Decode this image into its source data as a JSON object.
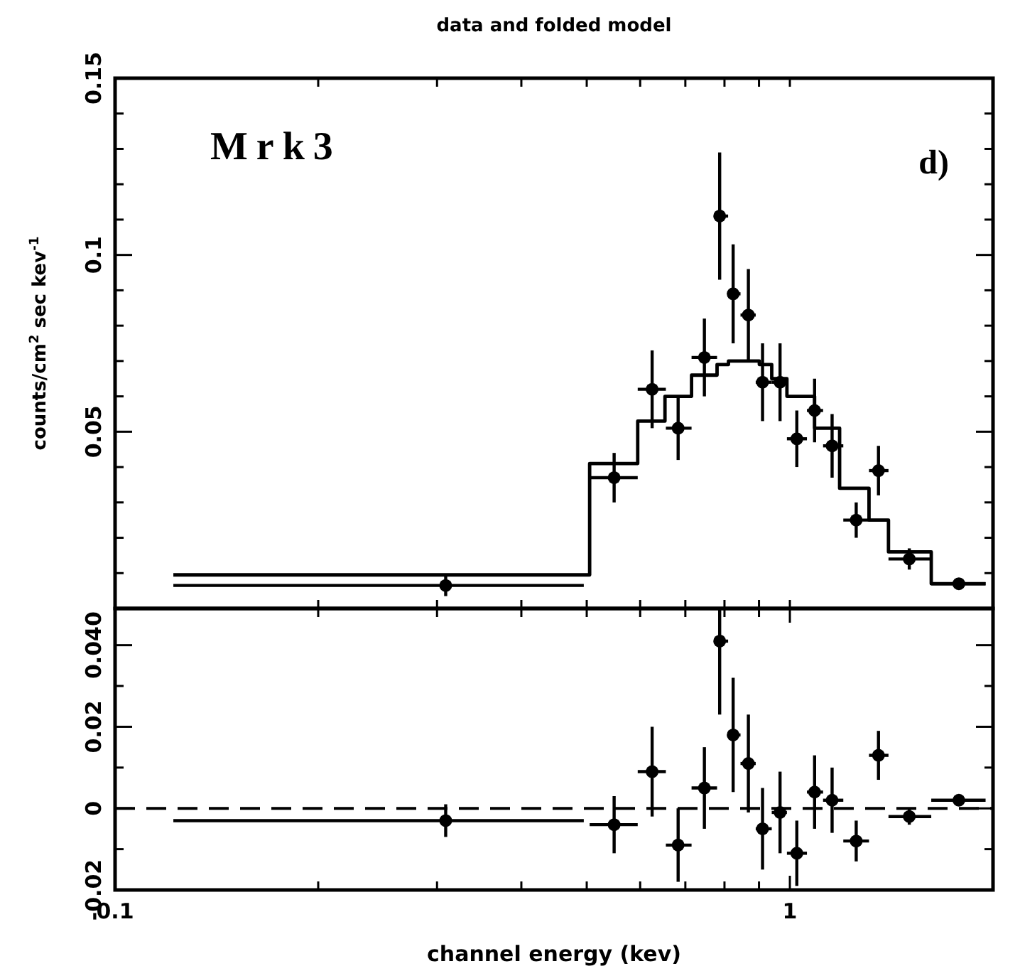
{
  "chart_data": [
    {
      "type": "scatter",
      "title": "data and folded model",
      "ylabel": "counts/cm$^{2}$ sec kev$^{-1}$",
      "annotations": [
        "Mrk3",
        "d)"
      ],
      "tick_labels": "y",
      "log": "x",
      "xlim": [
        0.1,
        2
      ],
      "xticks": [
        {
          "value": 0.2,
          "label": null
        },
        {
          "value": 0.3,
          "label": null
        },
        {
          "value": 0.4,
          "label": null
        },
        {
          "value": 0.5,
          "label": null
        },
        {
          "value": 0.6,
          "label": null
        },
        {
          "value": 0.7,
          "label": null
        },
        {
          "value": 0.8,
          "label": null
        },
        {
          "value": 0.9,
          "label": null
        },
        {
          "value": 1,
          "label": null
        }
      ],
      "ylim": [
        0,
        0.15
      ],
      "yticks": [
        {
          "value": 0.01,
          "label": null
        },
        {
          "value": 0.02,
          "label": null
        },
        {
          "value": 0.03,
          "label": null
        },
        {
          "value": 0.04,
          "label": null
        },
        0.05,
        {
          "value": 0.06,
          "label": null
        },
        {
          "value": 0.07,
          "label": null
        },
        {
          "value": 0.08,
          "label": null
        },
        {
          "value": 0.09,
          "label": null
        },
        0.1,
        {
          "value": 0.11,
          "label": null
        },
        {
          "value": 0.12,
          "label": null
        },
        {
          "value": 0.13,
          "label": null
        },
        {
          "value": 0.14,
          "label": null
        },
        0.15
      ],
      "series": [
        {
          "marker": "circle",
          "color": "#000000",
          "x": [
            0.309,
            0.549,
            0.625,
            0.683,
            0.747,
            0.787,
            0.824,
            0.868,
            0.911,
            0.967,
            1.024,
            1.088,
            1.155,
            1.254,
            1.353,
            1.503,
            1.78
          ],
          "values": [
            0.0065,
            0.037,
            0.062,
            0.051,
            0.071,
            0.111,
            0.089,
            0.083,
            0.064,
            0.064,
            0.048,
            0.056,
            0.046,
            0.025,
            0.039,
            0.014,
            0.007
          ],
          "errors": [
            0.003,
            0.007,
            0.011,
            0.009,
            0.011,
            0.018,
            0.014,
            0.013,
            0.011,
            0.011,
            0.008,
            0.009,
            0.009,
            0.005,
            0.007,
            0.003,
            0.001
          ],
          "xerrors": [
            [
              0.122,
              0.495
            ],
            [
              0.505,
              0.595
            ],
            [
              0.595,
              0.655
            ],
            [
              0.655,
              0.715
            ],
            [
              0.715,
              0.78
            ],
            [
              0.78,
              0.81
            ],
            [
              0.81,
              0.845
            ],
            [
              0.845,
              0.89
            ],
            [
              0.89,
              0.94
            ],
            [
              0.94,
              0.99
            ],
            [
              0.99,
              1.06
            ],
            [
              1.06,
              1.12
            ],
            [
              1.12,
              1.2
            ],
            [
              1.2,
              1.31
            ],
            [
              1.31,
              1.4
            ],
            [
              1.4,
              1.62
            ],
            [
              1.62,
              1.95
            ]
          ]
        },
        {
          "type": "step",
          "color": "#000000",
          "x": [
            0.122,
            0.505,
            0.595,
            0.653,
            0.715,
            0.78,
            0.811,
            0.901,
            0.94,
            0.99,
            1.088,
            1.185,
            1.31,
            1.4,
            1.62,
            1.95
          ],
          "values": [
            0.0095,
            0.041,
            0.053,
            0.06,
            0.066,
            0.069,
            0.07,
            0.069,
            0.065,
            0.06,
            0.051,
            0.034,
            0.025,
            0.016,
            0.007,
            0.007
          ]
        }
      ]
    },
    {
      "type": "scatter",
      "xlabel": "channel energy (kev)",
      "log": "x",
      "xlim": [
        0.1,
        2
      ],
      "xticks": [
        0.1,
        {
          "value": 0.2,
          "label": null
        },
        {
          "value": 0.3,
          "label": null
        },
        {
          "value": 0.4,
          "label": null
        },
        {
          "value": 0.5,
          "label": null
        },
        {
          "value": 0.6,
          "label": null
        },
        {
          "value": 0.7,
          "label": null
        },
        {
          "value": 0.8,
          "label": null
        },
        {
          "value": 0.9,
          "label": null
        },
        1
      ],
      "ylim": [
        -0.02,
        0.049
      ],
      "yticks": [
        -0.02,
        {
          "value": -0.01,
          "label": null
        },
        0,
        {
          "value": 0.01,
          "label": null
        },
        0.02,
        {
          "value": 0.03,
          "label": null
        },
        {
          "value": 0.04,
          "label": "0.040"
        }
      ],
      "ref_lines": [
        {
          "axis": "y",
          "value": 0,
          "line_style": "dashed",
          "color": "#000000"
        }
      ],
      "series": [
        {
          "marker": "circle",
          "color": "#000000",
          "x": [
            0.309,
            0.549,
            0.625,
            0.683,
            0.747,
            0.787,
            0.824,
            0.868,
            0.911,
            0.967,
            1.024,
            1.088,
            1.155,
            1.254,
            1.353,
            1.503,
            1.78
          ],
          "values": [
            -0.003,
            -0.004,
            0.009,
            -0.009,
            0.005,
            0.041,
            0.018,
            0.011,
            -0.005,
            -0.001,
            -0.011,
            0.004,
            0.002,
            -0.008,
            0.013,
            -0.002,
            0.002
          ],
          "errors": [
            0.004,
            0.007,
            0.011,
            0.009,
            0.01,
            [
              0.023,
              0.049
            ],
            0.014,
            0.012,
            0.01,
            0.01,
            0.008,
            0.009,
            0.008,
            0.005,
            0.006,
            0.002,
            0.001
          ],
          "xerrors": [
            [
              0.122,
              0.495
            ],
            [
              0.505,
              0.595
            ],
            [
              0.595,
              0.655
            ],
            [
              0.655,
              0.715
            ],
            [
              0.715,
              0.78
            ],
            [
              0.78,
              0.81
            ],
            [
              0.81,
              0.845
            ],
            [
              0.845,
              0.89
            ],
            [
              0.89,
              0.94
            ],
            [
              0.94,
              0.99
            ],
            [
              0.99,
              1.06
            ],
            [
              1.06,
              1.12
            ],
            [
              1.12,
              1.2
            ],
            [
              1.2,
              1.31
            ],
            [
              1.31,
              1.4
            ],
            [
              1.4,
              1.62
            ],
            [
              1.62,
              1.95
            ]
          ]
        }
      ]
    }
  ]
}
